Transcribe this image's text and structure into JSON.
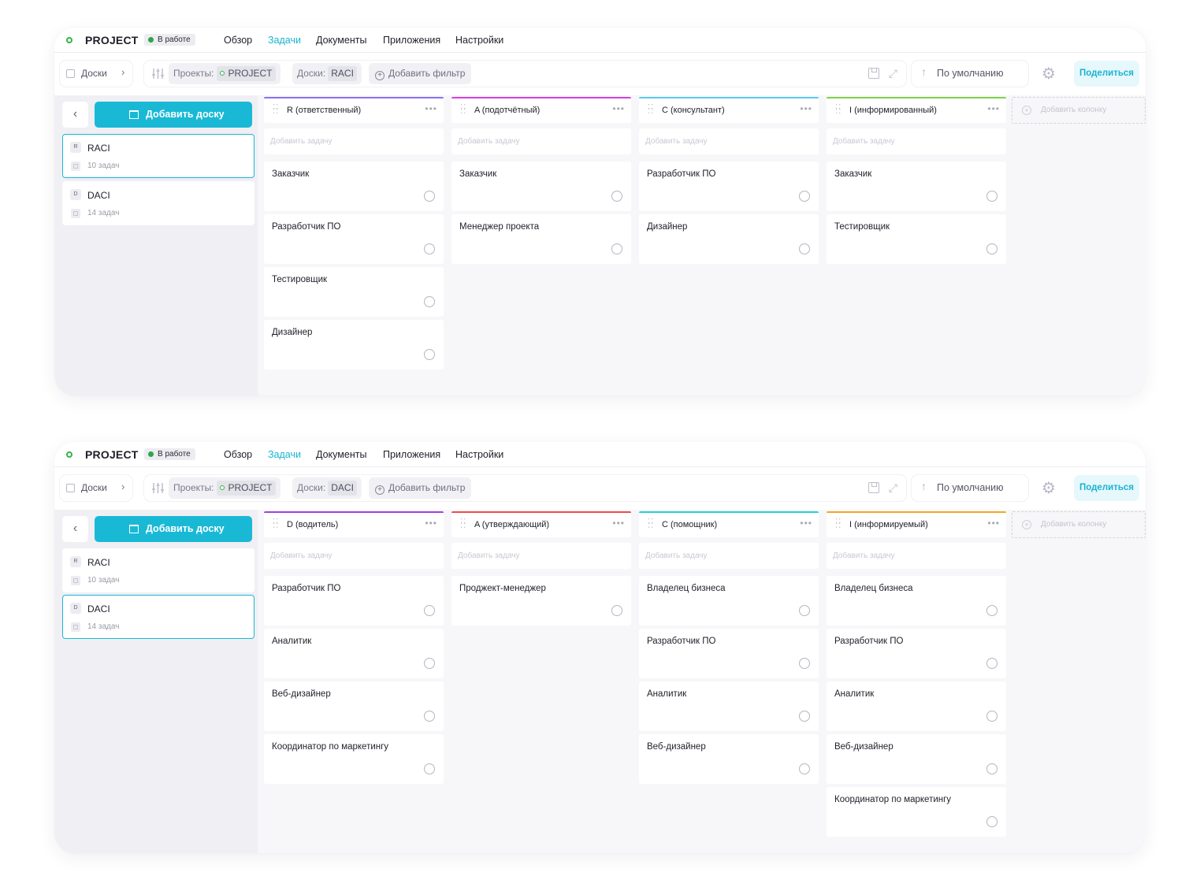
{
  "colors": {
    "accent": "#19b9d6",
    "status_green": "#2da64a"
  },
  "panels": [
    {
      "project_name": "PROJECT",
      "status_badge": "В работе",
      "nav_tabs": [
        "Обзор",
        "Задачи",
        "Документы",
        "Приложения",
        "Настройки"
      ],
      "active_tab": "Задачи",
      "boards_menu_label": "Доски",
      "filters": {
        "project_label": "Проекты:",
        "project_value": "PROJECT",
        "board_label": "Доски:",
        "board_value": "RACI",
        "add_filter": "Добавить фильтр"
      },
      "sort_label": "По умолчанию",
      "share_label": "Поделиться",
      "add_board_label": "Добавить доску",
      "boards": [
        {
          "letter": "R",
          "name": "RACI",
          "count": "10 задач",
          "selected": true
        },
        {
          "letter": "D",
          "name": "DACI",
          "count": "14 задач",
          "selected": false
        }
      ],
      "add_task_placeholder": "Добавить задачу",
      "add_column_label": "Добавить колонку",
      "columns": [
        {
          "title": "R (ответственный)",
          "color": "#8b6ff0",
          "tasks": [
            "Заказчик",
            "Разработчик ПО",
            "Тестировщик",
            "Дизайнер"
          ]
        },
        {
          "title": "A (подотчётный)",
          "color": "#d63fe0",
          "tasks": [
            "Заказчик",
            "Менеджер проекта"
          ]
        },
        {
          "title": "С (консультант)",
          "color": "#5ac8f0",
          "tasks": [
            "Разработчик ПО",
            "Дизайнер"
          ]
        },
        {
          "title": "I (информированный)",
          "color": "#7ed04b",
          "tasks": [
            "Заказчик",
            "Тестировщик"
          ]
        }
      ]
    },
    {
      "project_name": "PROJECT",
      "status_badge": "В работе",
      "nav_tabs": [
        "Обзор",
        "Задачи",
        "Документы",
        "Приложения",
        "Настройки"
      ],
      "active_tab": "Задачи",
      "boards_menu_label": "Доски",
      "filters": {
        "project_label": "Проекты:",
        "project_value": "PROJECT",
        "board_label": "Доски:",
        "board_value": "DACI",
        "add_filter": "Добавить фильтр"
      },
      "sort_label": "По умолчанию",
      "share_label": "Поделиться",
      "add_board_label": "Добавить доску",
      "boards": [
        {
          "letter": "R",
          "name": "RACI",
          "count": "10 задач",
          "selected": false
        },
        {
          "letter": "D",
          "name": "DACI",
          "count": "14 задач",
          "selected": true
        }
      ],
      "add_task_placeholder": "Добавить задачу",
      "add_column_label": "Добавить колонку",
      "columns": [
        {
          "title": "D (водитель)",
          "color": "#a43ee0",
          "tasks": [
            "Разработчик ПО",
            "Аналитик",
            "Веб-дизайнер",
            "Координатор по маркетингу"
          ]
        },
        {
          "title": "A (утверждающий)",
          "color": "#ef4b4b",
          "tasks": [
            "Проджект-менеджер"
          ]
        },
        {
          "title": "С (помощник)",
          "color": "#28cfd6",
          "tasks": [
            "Владелец бизнеса",
            "Разработчик ПО",
            "Аналитик",
            "Веб-дизайнер"
          ]
        },
        {
          "title": "I (информируемый)",
          "color": "#f5a623",
          "tasks": [
            "Владелец бизнеса",
            "Разработчик ПО",
            "Аналитик",
            "Веб-дизайнер",
            "Координатор по маркетингу"
          ]
        }
      ]
    }
  ]
}
